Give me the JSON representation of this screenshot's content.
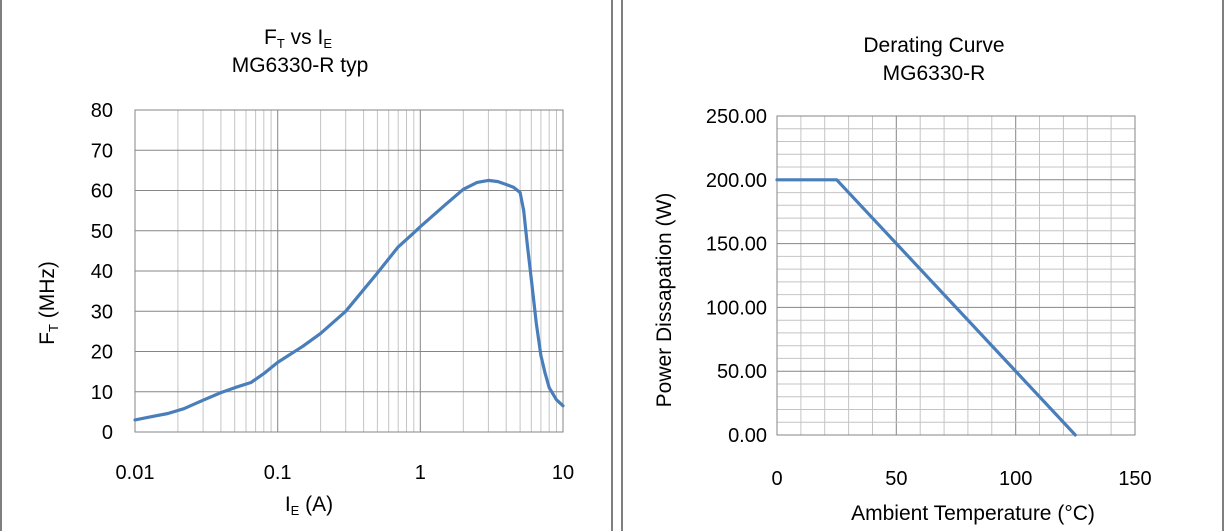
{
  "chart_data": [
    {
      "type": "line",
      "title": "F_T vs I_E",
      "title_line1_main": "F",
      "title_line1_sub1": "T",
      "title_line1_mid": " vs I",
      "title_line1_sub2": "E",
      "subtitle": "MG6330-R typ",
      "xlabel_main": "I",
      "xlabel_sub": "E",
      "xlabel_unit": " (A)",
      "ylabel_main": "F",
      "ylabel_sub": "T",
      "ylabel_unit": " (MHz)",
      "xscale": "log",
      "xlim": [
        0.01,
        10
      ],
      "ylim": [
        0,
        80
      ],
      "x_ticks": [
        "0.01",
        "0.1",
        "1",
        "10"
      ],
      "y_ticks": [
        "0",
        "10",
        "20",
        "30",
        "40",
        "50",
        "60",
        "70",
        "80"
      ],
      "grid": true,
      "series": [
        {
          "x": [
            0.01,
            0.013,
            0.017,
            0.022,
            0.03,
            0.04,
            0.05,
            0.065,
            0.08,
            0.1,
            0.15,
            0.2,
            0.3,
            0.5,
            0.7,
            0.9,
            1.0,
            1.5,
            2.0,
            2.5,
            3.0,
            3.5,
            4.0,
            4.5,
            5.0,
            5.3,
            5.6,
            6.0,
            6.5,
            7.0,
            7.5,
            8.0,
            9.0,
            10.0
          ],
          "y": [
            3,
            3.8,
            4.6,
            5.8,
            7.9,
            9.8,
            11,
            12.3,
            14.5,
            17.3,
            21.3,
            24.5,
            30,
            39.5,
            46,
            49.5,
            51,
            56.5,
            60.3,
            62,
            62.5,
            62.2,
            61.5,
            60.8,
            59.5,
            55,
            47,
            38,
            27,
            19,
            14.5,
            11,
            8,
            6.5
          ]
        }
      ],
      "colors": {
        "line": "#4a7ebb",
        "grid_major": "#868686",
        "grid_minor": "#c4c4c4"
      }
    },
    {
      "type": "line",
      "title": "Derating Curve",
      "subtitle": "MG6330-R",
      "xlabel": "Ambient Temperature (°C)",
      "ylabel": "Power Dissapation (W)",
      "xlim": [
        0,
        150
      ],
      "ylim": [
        0,
        250
      ],
      "x_ticks": [
        "0",
        "50",
        "100",
        "150"
      ],
      "y_ticks": [
        "0.00",
        "50.00",
        "100.00",
        "150.00",
        "200.00",
        "250.00"
      ],
      "grid": true,
      "series": [
        {
          "x": [
            0,
            25,
            125
          ],
          "y": [
            200,
            200,
            0
          ]
        }
      ],
      "colors": {
        "line": "#4a7ebb",
        "grid_major": "#868686",
        "grid_minor": "#c4c4c4"
      }
    }
  ]
}
